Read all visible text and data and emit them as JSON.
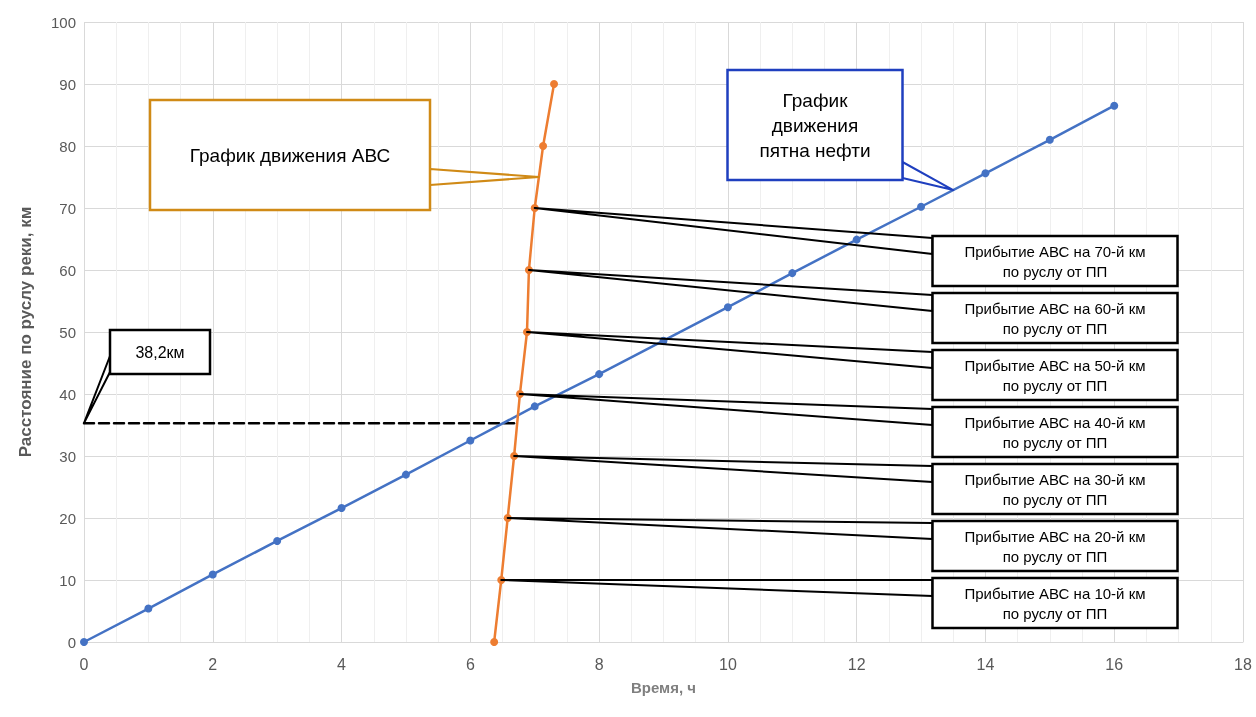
{
  "chart_data": {
    "type": "line",
    "xlabel": "Время, ч",
    "ylabel": "Расстояние по руслу реки, км",
    "xlim": [
      0,
      18
    ],
    "ylim": [
      0,
      100
    ],
    "xticks": [
      0,
      2,
      4,
      6,
      8,
      10,
      12,
      14,
      16,
      18
    ],
    "yticks": [
      0,
      10,
      20,
      30,
      40,
      50,
      60,
      70,
      80,
      90,
      100
    ],
    "grid": true,
    "marker": "circle",
    "series": [
      {
        "color": "#4472c4",
        "x": [
          0,
          1,
          2,
          3,
          4,
          5,
          6,
          7,
          8,
          9,
          10,
          11,
          12,
          13,
          14,
          15,
          16
        ],
        "values": [
          0,
          5.4,
          10.9,
          16.3,
          21.6,
          27,
          32.5,
          38,
          43.2,
          48.6,
          54,
          59.5,
          64.9,
          70.2,
          75.6,
          81,
          86.5
        ]
      },
      {
        "color": "#ed7d31",
        "x": [
          6.37,
          6.48,
          6.58,
          6.68,
          6.77,
          6.88,
          6.91,
          7.0,
          7.13,
          7.3
        ],
        "values": [
          0,
          10,
          20,
          30,
          40,
          50,
          60,
          70,
          80,
          90
        ]
      },
      {
        "color": "#000000",
        "x": [
          0,
          6.75
        ],
        "values": [
          35.3,
          35.3
        ],
        "line_style": "dashed",
        "marker": "none"
      }
    ],
    "annotations": [
      "График движения АВС",
      "График\nдвижения\nпятна нефти",
      "38,2км",
      "Прибытие АВС на 10-й км\nпо руслу от ПП",
      "Прибытие АВС на 20-й км\nпо руслу от ПП",
      "Прибытие АВС на 30-й км\nпо руслу от ПП",
      "Прибытие АВС на 40-й км\nпо руслу от ПП",
      "Прибытие АВС на 50-й км\nпо руслу от ПП",
      "Прибытие АВС на 60-й км\nпо руслу от ПП",
      "Прибытие АВС на 70-й км\nпо руслу от ПП"
    ]
  }
}
